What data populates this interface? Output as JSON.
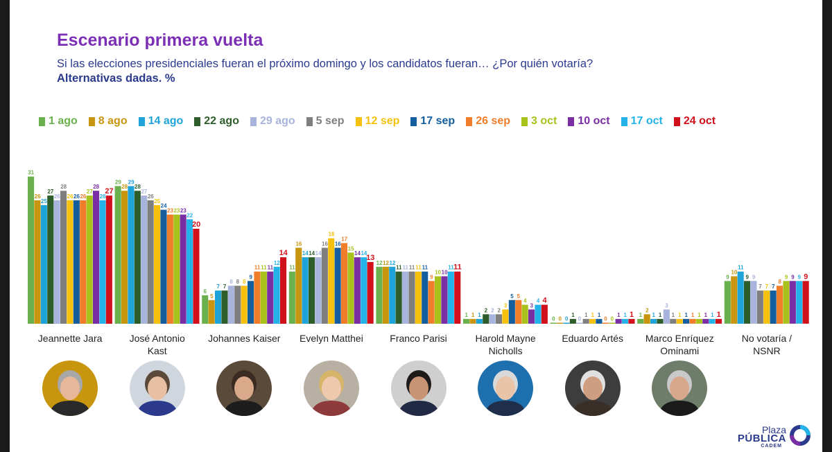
{
  "title": "Escenario primera vuelta",
  "subtitle": "Si las elecciones presidenciales fueran el próximo domingo y los candidatos fueran… ¿Por quién votaría?",
  "note": "Alternativas dadas. %",
  "colors": [
    "#6ab04c",
    "#c8950e",
    "#1ea3d9",
    "#2d5d2a",
    "#a9b4dd",
    "#7f7f7f",
    "#f5c10e",
    "#155e9e",
    "#ef7d29",
    "#a8c21b",
    "#7a2ea3",
    "#24b3e8",
    "#d0111b"
  ],
  "logo": {
    "line1": "Plaza",
    "line2": "PÚBLICA",
    "line3": "CADEM"
  },
  "chart_data": {
    "type": "bar",
    "title": "Escenario primera vuelta",
    "ylabel": "%",
    "ylim": [
      0,
      31
    ],
    "grid": false,
    "legend_position": "top",
    "categories": [
      "Jeannette Jara",
      "José Antonio Kast",
      "Johannes Kaiser",
      "Evelyn Matthei",
      "Franco Parisi",
      "Harold Mayne Nicholls",
      "Eduardo Artés",
      "Marco Enríquez Ominami",
      "No votaría / NSNR"
    ],
    "category_lines": [
      [
        "Jeannette Jara"
      ],
      [
        "José Antonio",
        "Kast"
      ],
      [
        "Johannes Kaiser"
      ],
      [
        "Evelyn Matthei"
      ],
      [
        "Franco Parisi"
      ],
      [
        "Harold Mayne",
        "Nicholls"
      ],
      [
        "Eduardo Artés"
      ],
      [
        "Marco Enríquez",
        "Ominami"
      ],
      [
        "No votaría /",
        "NSNR"
      ]
    ],
    "series": [
      {
        "name": "1 ago",
        "values": [
          31,
          29,
          6,
          11,
          12,
          1,
          0,
          1,
          9
        ]
      },
      {
        "name": "8 ago",
        "values": [
          26,
          28,
          5,
          16,
          12,
          1,
          0,
          2,
          10
        ]
      },
      {
        "name": "14 ago",
        "values": [
          25,
          29,
          7,
          14,
          12,
          1,
          0,
          1,
          11
        ]
      },
      {
        "name": "22 ago",
        "values": [
          27,
          28,
          7,
          14,
          11,
          2,
          1,
          1,
          9
        ]
      },
      {
        "name": "29 ago",
        "values": [
          26,
          27,
          8,
          14,
          11,
          2,
          0,
          3,
          9
        ]
      },
      {
        "name": "5 sep",
        "values": [
          28,
          26,
          8,
          16,
          11,
          2,
          1,
          1,
          7
        ]
      },
      {
        "name": "12 sep",
        "values": [
          26,
          25,
          8,
          18,
          11,
          3,
          1,
          1,
          7
        ]
      },
      {
        "name": "17 sep",
        "values": [
          26,
          24,
          9,
          16,
          11,
          5,
          1,
          1,
          7
        ]
      },
      {
        "name": "26 sep",
        "values": [
          26,
          23,
          11,
          17,
          9,
          5,
          0,
          1,
          8
        ]
      },
      {
        "name": "3 oct",
        "values": [
          27,
          23,
          11,
          15,
          10,
          4,
          0,
          1,
          9
        ]
      },
      {
        "name": "10 oct",
        "values": [
          28,
          23,
          11,
          14,
          10,
          3,
          1,
          1,
          9
        ]
      },
      {
        "name": "17 oct",
        "values": [
          26,
          22,
          12,
          14,
          11,
          4,
          1,
          1,
          9
        ]
      },
      {
        "name": "24 oct",
        "values": [
          27,
          20,
          14,
          13,
          11,
          4,
          1,
          1,
          9
        ]
      }
    ]
  }
}
